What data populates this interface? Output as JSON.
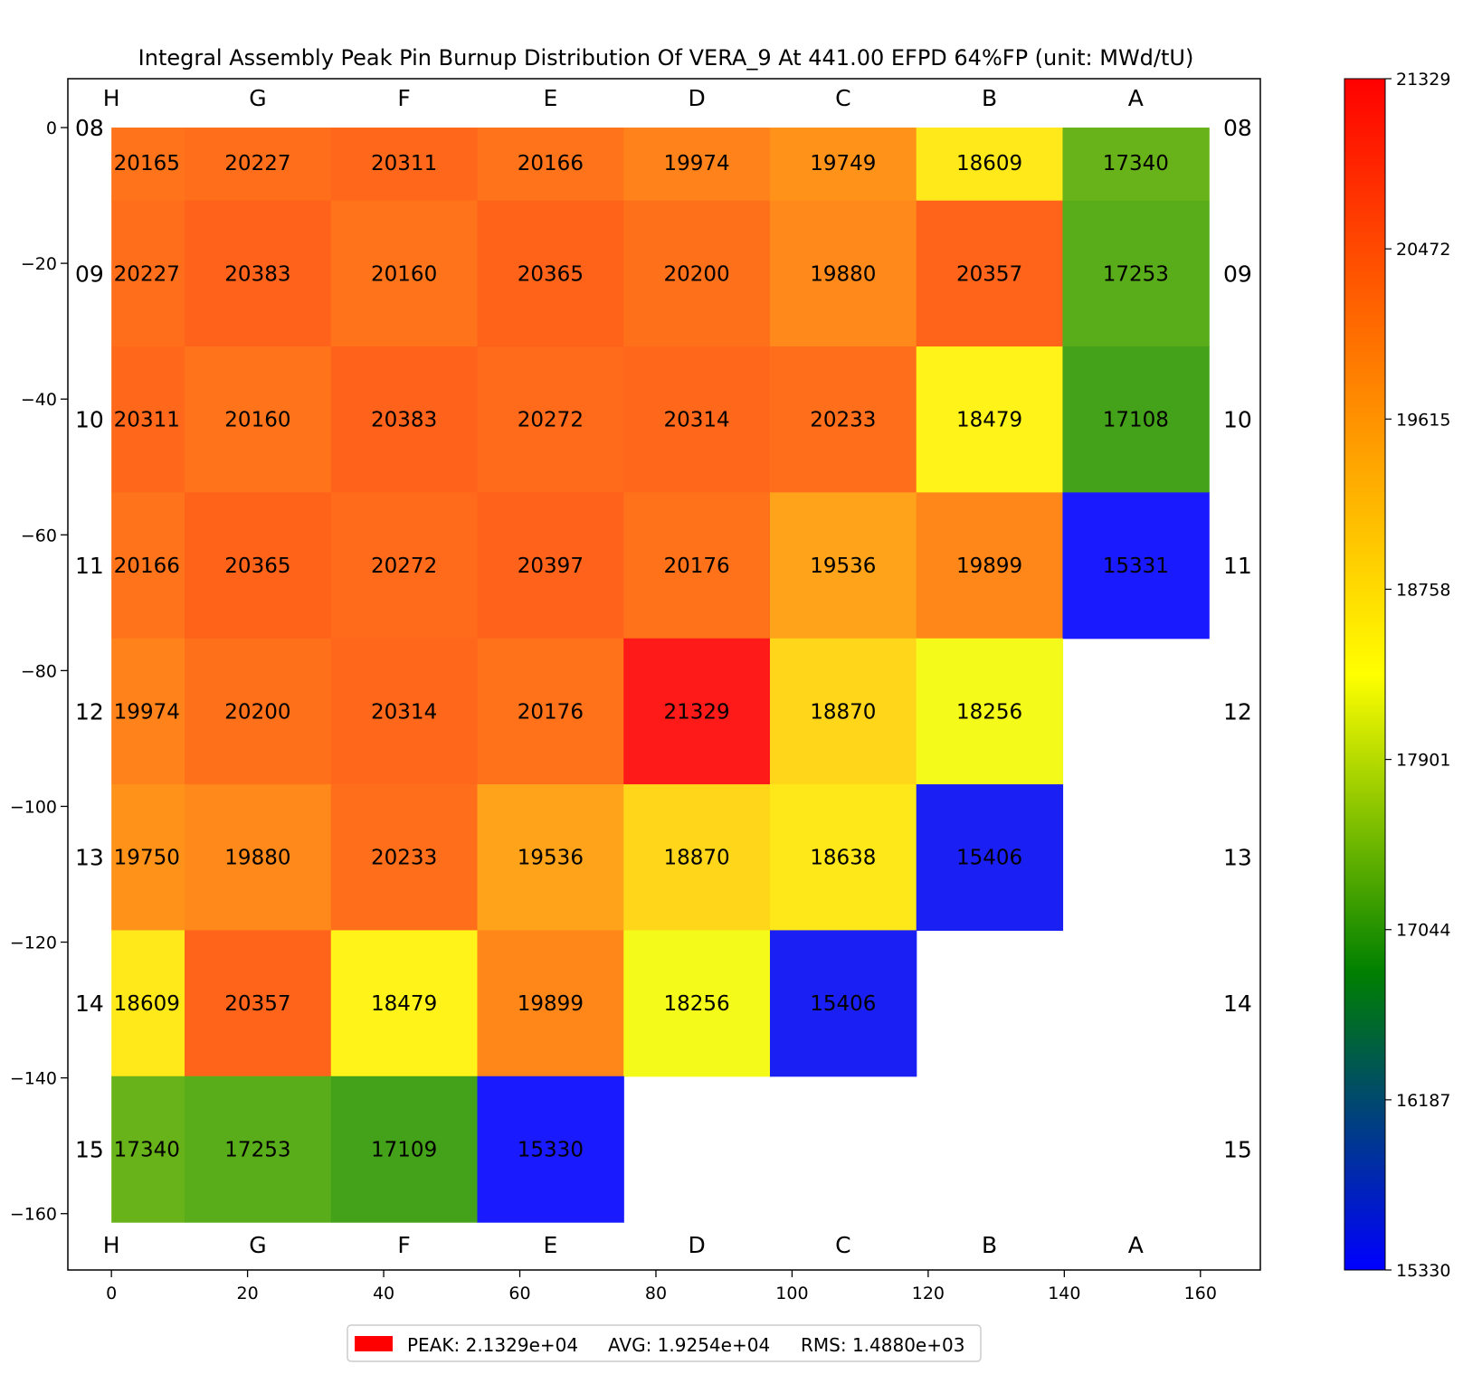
{
  "chart_data": {
    "type": "heatmap",
    "title": "Integral Assembly Peak Pin Burnup Distribution Of VERA_9 At 441.00 EFPD 64%FP (unit: MWd/tU)",
    "columns": [
      "H",
      "G",
      "F",
      "E",
      "D",
      "C",
      "B",
      "A"
    ],
    "rows": [
      "08",
      "09",
      "10",
      "11",
      "12",
      "13",
      "14",
      "15"
    ],
    "values": [
      [
        20165,
        20227,
        20311,
        20166,
        19974,
        19749,
        18609,
        17340
      ],
      [
        20227,
        20383,
        20160,
        20365,
        20200,
        19880,
        20357,
        17253
      ],
      [
        20311,
        20160,
        20383,
        20272,
        20314,
        20233,
        18479,
        17108
      ],
      [
        20166,
        20365,
        20272,
        20397,
        20176,
        19536,
        19899,
        15331
      ],
      [
        19974,
        20200,
        20314,
        20176,
        21329,
        18870,
        18256,
        null
      ],
      [
        19750,
        19880,
        20233,
        19536,
        18870,
        18638,
        15406,
        null
      ],
      [
        18609,
        20357,
        18479,
        19899,
        18256,
        15406,
        null,
        null
      ],
      [
        17340,
        17253,
        17109,
        15330,
        null,
        null,
        null,
        null
      ]
    ],
    "x_axis": {
      "ticks": [
        0,
        20,
        40,
        60,
        80,
        100,
        120,
        140,
        160
      ],
      "range": [
        -6.4,
        168.8
      ]
    },
    "y_axis": {
      "ticks": [
        0,
        -20,
        -40,
        -60,
        -80,
        -100,
        -120,
        -140,
        -160
      ],
      "range": [
        7.2,
        -168.3
      ]
    },
    "cell_size": 21.5,
    "first_cell_width": 10.75,
    "colorbar": {
      "ticks": [
        21329,
        20472,
        19615,
        18758,
        17901,
        17044,
        16187,
        15330
      ],
      "range": [
        15330,
        21329
      ],
      "colors": [
        "#0000ff",
        "#008000",
        "#ffff00",
        "#ff8000",
        "#ff0000"
      ]
    },
    "grid": false,
    "legend": {
      "position": "bottom-center",
      "swatch_color": "#ff0000",
      "peak": "PEAK: 2.1329e+04",
      "avg": "AVG: 1.9254e+04",
      "rms": "RMS: 1.4880e+03"
    }
  }
}
